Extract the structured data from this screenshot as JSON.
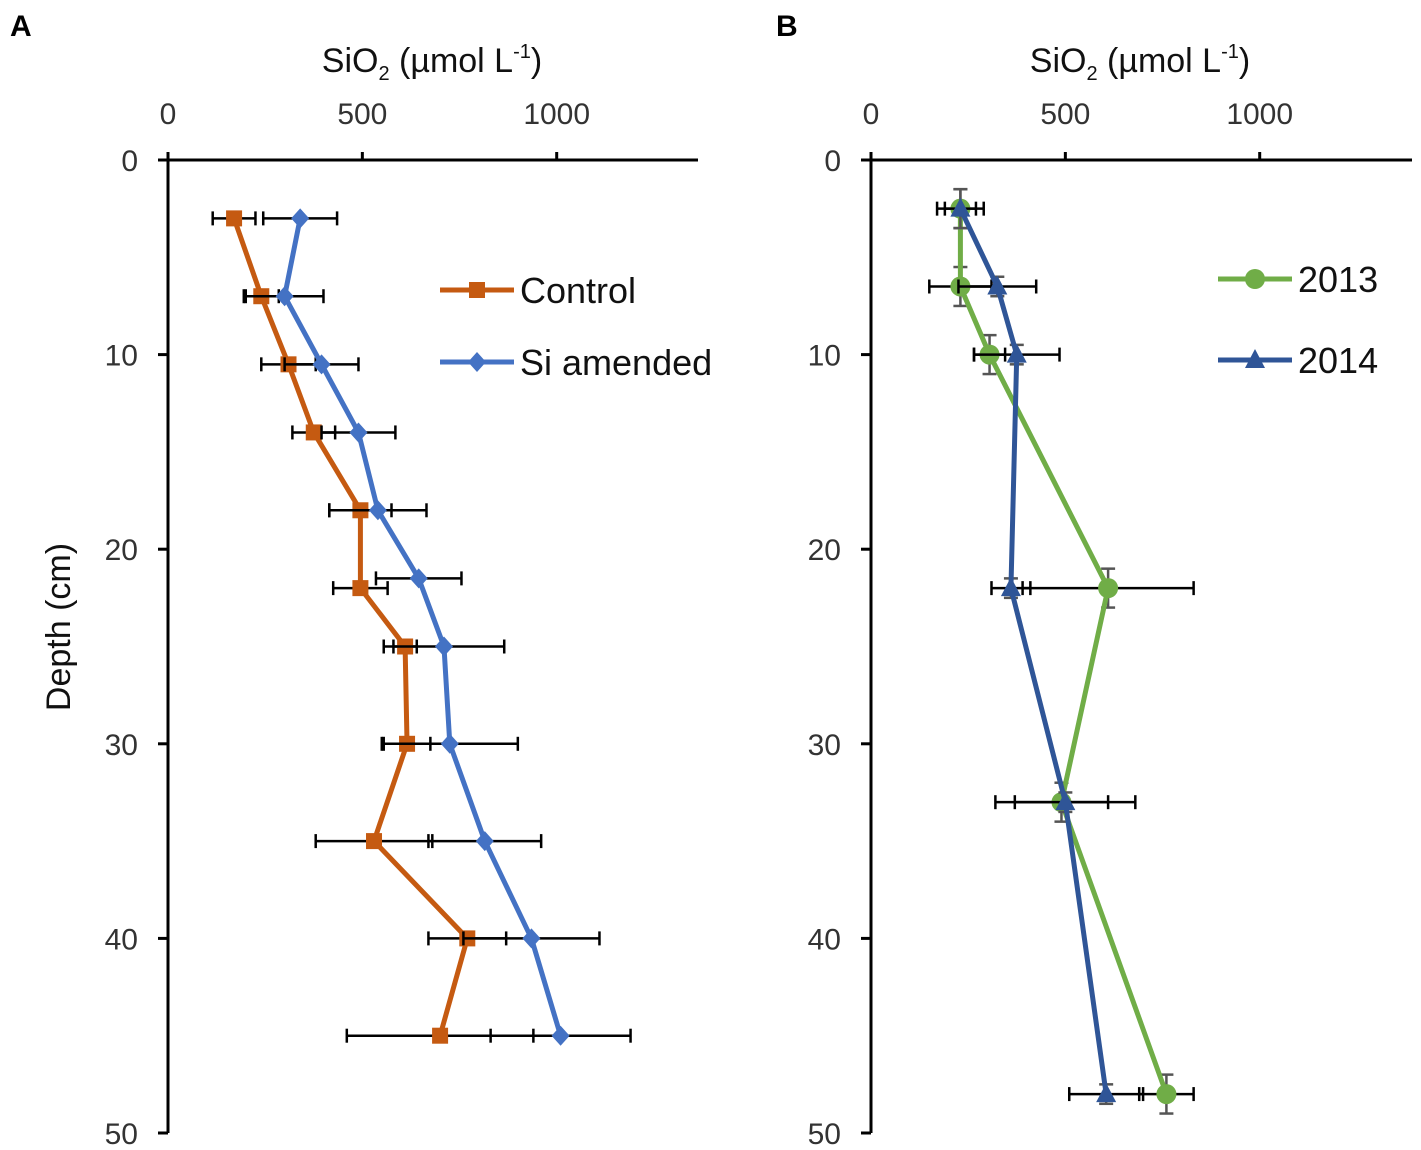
{
  "figure": {
    "ylabel": "Depth (cm)"
  },
  "chart_data": [
    {
      "type": "line",
      "panel_label": "A",
      "xlabel_main": "SiO",
      "xlabel_sub": "2",
      "xlabel_units_pre": " (µmol L",
      "xlabel_units_sup": "-1",
      "xlabel_units_post": ")",
      "ylabel": "Depth (cm)",
      "xlim": [
        0,
        1350
      ],
      "ylim": [
        0,
        50
      ],
      "y_inverted": true,
      "x_ticks": [
        0,
        500,
        1000
      ],
      "y_ticks": [
        0,
        10,
        20,
        30,
        40,
        50
      ],
      "legend_position": "top-right",
      "series": [
        {
          "name": "Control",
          "color": "#C55A11",
          "marker": "square",
          "points": [
            {
              "depth": 3,
              "value": 170,
              "xerr": 55
            },
            {
              "depth": 7,
              "value": 240,
              "xerr": 45
            },
            {
              "depth": 10.5,
              "value": 310,
              "xerr": 70
            },
            {
              "depth": 14,
              "value": 375,
              "xerr": 55
            },
            {
              "depth": 18,
              "value": 495,
              "xerr": 80
            },
            {
              "depth": 22,
              "value": 495,
              "xerr": 70
            },
            {
              "depth": 25,
              "value": 610,
              "xerr": 30
            },
            {
              "depth": 30,
              "value": 615,
              "xerr": 60
            },
            {
              "depth": 35,
              "value": 530,
              "xerr": 150
            },
            {
              "depth": 40,
              "value": 770,
              "xerr": 100
            },
            {
              "depth": 45,
              "value": 700,
              "xerr": 240
            }
          ]
        },
        {
          "name": "Si amended",
          "color": "#4472C4",
          "marker": "diamond",
          "points": [
            {
              "depth": 3,
              "value": 340,
              "xerr": 95
            },
            {
              "depth": 7,
              "value": 300,
              "xerr": 100
            },
            {
              "depth": 10.5,
              "value": 395,
              "xerr": 95
            },
            {
              "depth": 14,
              "value": 490,
              "xerr": 95
            },
            {
              "depth": 18,
              "value": 540,
              "xerr": 125
            },
            {
              "depth": 21.5,
              "value": 645,
              "xerr": 110
            },
            {
              "depth": 25,
              "value": 710,
              "xerr": 155
            },
            {
              "depth": 30,
              "value": 725,
              "xerr": 175
            },
            {
              "depth": 35,
              "value": 815,
              "xerr": 145
            },
            {
              "depth": 40,
              "value": 935,
              "xerr": 175
            },
            {
              "depth": 45,
              "value": 1010,
              "xerr": 180
            }
          ]
        }
      ]
    },
    {
      "type": "line",
      "panel_label": "B",
      "xlabel_main": "SiO",
      "xlabel_sub": "2",
      "xlabel_units_pre": " (µmol L",
      "xlabel_units_sup": "-1",
      "xlabel_units_post": ")",
      "ylabel": "",
      "xlim": [
        0,
        1400
      ],
      "ylim": [
        0,
        50
      ],
      "y_inverted": true,
      "x_ticks": [
        0,
        500,
        1000
      ],
      "y_ticks": [
        0,
        10,
        20,
        30,
        40,
        50
      ],
      "legend_position": "top-right",
      "series": [
        {
          "name": "2013",
          "color": "#70AD47",
          "marker": "circle",
          "points": [
            {
              "depth": 2.5,
              "value": 230,
              "xerr": 40,
              "yerr": 1
            },
            {
              "depth": 6.5,
              "value": 230,
              "xerr": 80,
              "yerr": 1
            },
            {
              "depth": 10,
              "value": 305,
              "xerr": 40,
              "yerr": 1
            },
            {
              "depth": 22,
              "value": 610,
              "xerr": 220,
              "yerr": 1
            },
            {
              "depth": 33,
              "value": 490,
              "xerr": 120,
              "yerr": 1
            },
            {
              "depth": 48,
              "value": 760,
              "xerr": 70,
              "yerr": 1
            }
          ]
        },
        {
          "name": "2014",
          "color": "#2F5597",
          "marker": "triangle",
          "points": [
            {
              "depth": 2.5,
              "value": 230,
              "xerr": 60,
              "yerr": 1
            },
            {
              "depth": 6.5,
              "value": 325,
              "xerr": 100,
              "yerr": 0.5
            },
            {
              "depth": 10,
              "value": 375,
              "xerr": 110,
              "yerr": 0.5
            },
            {
              "depth": 22,
              "value": 360,
              "xerr": 50,
              "yerr": 0.5
            },
            {
              "depth": 33,
              "value": 500,
              "xerr": 180,
              "yerr": 0.5
            },
            {
              "depth": 48,
              "value": 605,
              "xerr": 95,
              "yerr": 0.5
            }
          ]
        }
      ]
    }
  ]
}
